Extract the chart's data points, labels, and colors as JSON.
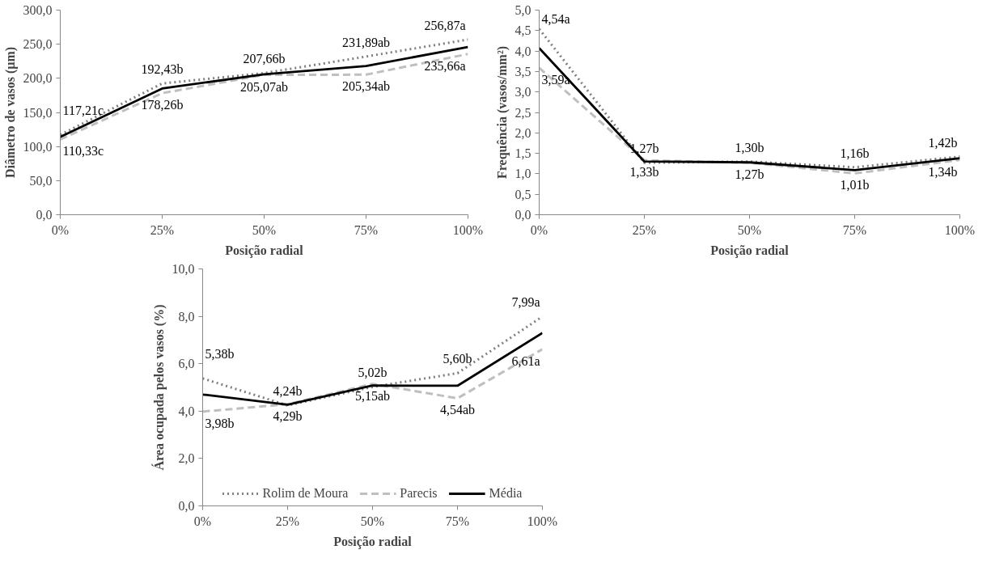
{
  "chart_data": [
    {
      "type": "line",
      "xlabel": "Posição radial",
      "ylabel": "Diâmetro de vasos (µm)",
      "categories": [
        "0%",
        "25%",
        "50%",
        "75%",
        "100%"
      ],
      "ylim": [
        0,
        300
      ],
      "yticks": [
        {
          "value": 0,
          "label": "0,0"
        },
        {
          "value": 50,
          "label": "50,0"
        },
        {
          "value": 100,
          "label": "100,0"
        },
        {
          "value": 150,
          "label": "150,0"
        },
        {
          "value": 200,
          "label": "200,0"
        },
        {
          "value": 250,
          "label": "250,0"
        },
        {
          "value": 300,
          "label": "300,0"
        }
      ],
      "grid": false,
      "legend": false,
      "series": [
        {
          "color": "#7f7f7f",
          "line_style": "dotted",
          "values": [
            117.21,
            192.43,
            207.66,
            231.89,
            256.87
          ],
          "value_labels": [
            "117,21c",
            "192,43b",
            "207,66b",
            "231,89ab",
            "256,87a"
          ]
        },
        {
          "color": "#bfbfbf",
          "line_style": "dashed",
          "values": [
            110.33,
            178.26,
            205.07,
            205.34,
            235.66
          ],
          "value_labels": [
            "110,33c",
            "178,26b",
            "205,07ab",
            "205,34ab",
            "235,66a"
          ]
        },
        {
          "color": "#000000",
          "line_style": "solid",
          "values": [
            114,
            185,
            206,
            218,
            246
          ]
        }
      ]
    },
    {
      "type": "line",
      "xlabel": "Posição radial",
      "ylabel": "Frequência (vasos/mm²)",
      "categories": [
        "0%",
        "25%",
        "50%",
        "75%",
        "100%"
      ],
      "ylim": [
        0,
        5
      ],
      "yticks": [
        {
          "value": 0,
          "label": "0,0"
        },
        {
          "value": 0.5,
          "label": "0,5"
        },
        {
          "value": 1,
          "label": "1,0"
        },
        {
          "value": 1.5,
          "label": "1,5"
        },
        {
          "value": 2,
          "label": "2,0"
        },
        {
          "value": 2.5,
          "label": "2,5"
        },
        {
          "value": 3,
          "label": "3,0"
        },
        {
          "value": 3.5,
          "label": "3,5"
        },
        {
          "value": 4,
          "label": "4,0"
        },
        {
          "value": 4.5,
          "label": "4,5"
        },
        {
          "value": 5,
          "label": "5,0"
        }
      ],
      "grid": false,
      "legend": false,
      "series": [
        {
          "color": "#7f7f7f",
          "line_style": "dotted",
          "values": [
            4.54,
            1.27,
            1.3,
            1.16,
            1.42
          ],
          "value_labels": [
            "4,54a",
            "1,27b",
            "1,30b",
            "1,16b",
            "1,42b"
          ]
        },
        {
          "color": "#bfbfbf",
          "line_style": "dashed",
          "values": [
            3.59,
            1.33,
            1.27,
            1.01,
            1.34
          ],
          "value_labels": [
            "3,59a",
            "1,33b",
            "1,27b",
            "1,01b",
            "1,34b"
          ]
        },
        {
          "color": "#000000",
          "line_style": "solid",
          "values": [
            4.07,
            1.3,
            1.28,
            1.09,
            1.38
          ]
        }
      ]
    },
    {
      "type": "line",
      "xlabel": "Posição radial",
      "ylabel": "Área ocupada pelos vasos (%)",
      "categories": [
        "0%",
        "25%",
        "50%",
        "75%",
        "100%"
      ],
      "ylim": [
        0,
        10
      ],
      "yticks": [
        {
          "value": 0,
          "label": "0,0"
        },
        {
          "value": 2,
          "label": "2,0"
        },
        {
          "value": 4,
          "label": "4,0"
        },
        {
          "value": 6,
          "label": "6,0"
        },
        {
          "value": 8,
          "label": "8,0"
        },
        {
          "value": 10,
          "label": "10,0"
        }
      ],
      "grid": false,
      "legend": "bottom",
      "series": [
        {
          "name": "Rolim de Moura",
          "color": "#7f7f7f",
          "line_style": "dotted",
          "values": [
            5.38,
            4.24,
            5.02,
            5.6,
            7.99
          ],
          "value_labels": [
            "5,38b",
            "4,24b",
            "5,02b",
            "5,60b",
            "7,99a"
          ]
        },
        {
          "name": "Parecis",
          "color": "#bfbfbf",
          "line_style": "dashed",
          "values": [
            3.98,
            4.29,
            5.15,
            4.54,
            6.61
          ],
          "value_labels": [
            "3,98b",
            "4,29b",
            "5,15ab",
            "4,54ab",
            "6,61a"
          ]
        },
        {
          "name": "Média",
          "color": "#000000",
          "line_style": "solid",
          "values": [
            4.7,
            4.27,
            5.08,
            5.07,
            7.3
          ]
        }
      ]
    }
  ]
}
